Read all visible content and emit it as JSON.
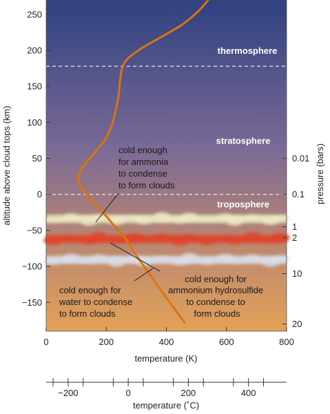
{
  "chart_data": {
    "type": "line",
    "xlabel": "temperature (K)",
    "ylabel": "altitude above cloud tops (km)",
    "xlim": [
      0,
      800
    ],
    "ylim": [
      -190,
      270
    ],
    "x_ticks": [
      "0",
      "200",
      "400",
      "600",
      "800"
    ],
    "y_ticks": [
      "250",
      "200",
      "150",
      "100",
      "50",
      "0",
      "−50",
      "−100",
      "−150"
    ],
    "y_tick_values": [
      250,
      200,
      150,
      100,
      50,
      0,
      -50,
      -100,
      -150
    ],
    "x_tick_values": [
      0,
      200,
      400,
      600,
      800
    ],
    "secondary_x": {
      "label": "temperature (˚C)",
      "ticks": [
        "−200",
        "0",
        "200",
        "400"
      ],
      "tick_values": [
        -200,
        0,
        200,
        400
      ]
    },
    "secondary_y": {
      "label": "pressure (bars)",
      "ticks": [
        {
          "label": "0.01",
          "altitude": 50
        },
        {
          "label": "0.1",
          "altitude": 0
        },
        {
          "label": "1",
          "altitude": -45
        },
        {
          "label": "2",
          "altitude": -60
        },
        {
          "label": "10",
          "altitude": -110
        },
        {
          "label": "20",
          "altitude": -180
        }
      ]
    },
    "series": [
      {
        "color": "#d9740f",
        "x": [
          460,
          420,
          380,
          340,
          300,
          265,
          230,
          195,
          160,
          125,
          108,
          112,
          135,
          165,
          195,
          215,
          228,
          240,
          255,
          300,
          380,
          450,
          500,
          540
        ],
        "y": [
          -178,
          -155,
          -132,
          -108,
          -85,
          -62,
          -45,
          -28,
          -12,
          5,
          18,
          30,
          45,
          60,
          75,
          92,
          110,
          135,
          178,
          198,
          218,
          235,
          252,
          270
        ]
      }
    ],
    "boundaries": [
      0,
      178
    ],
    "layers": [
      {
        "name": "thermosphere",
        "altitude": 200
      },
      {
        "name": "stratosphere",
        "altitude": 75
      },
      {
        "name": "troposphere",
        "altitude": -13
      }
    ],
    "cloud_bands": [
      {
        "altitude": -34,
        "color": "#ece9c2"
      },
      {
        "altitude": -62,
        "color": "#e0442c"
      },
      {
        "altitude": -91,
        "color": "#d9dde8"
      }
    ],
    "annotations": [
      {
        "lines": [
          "cold enough",
          "for ammonia",
          "to condense",
          "to form clouds"
        ]
      },
      {
        "lines": [
          "cold enough for",
          "ammonium hydrosulfide",
          "to condense to",
          "form clouds"
        ]
      },
      {
        "lines": [
          "cold enough for",
          "water to condense",
          "to form clouds"
        ]
      }
    ],
    "colors": {
      "sky_top": "#2f4180",
      "sky_mid": "#7b6a96",
      "sky_low": "#c08a6e",
      "sky_bottom": "#e3a158",
      "curve": "#d9740f",
      "boundary": "#e8e8f0"
    }
  }
}
